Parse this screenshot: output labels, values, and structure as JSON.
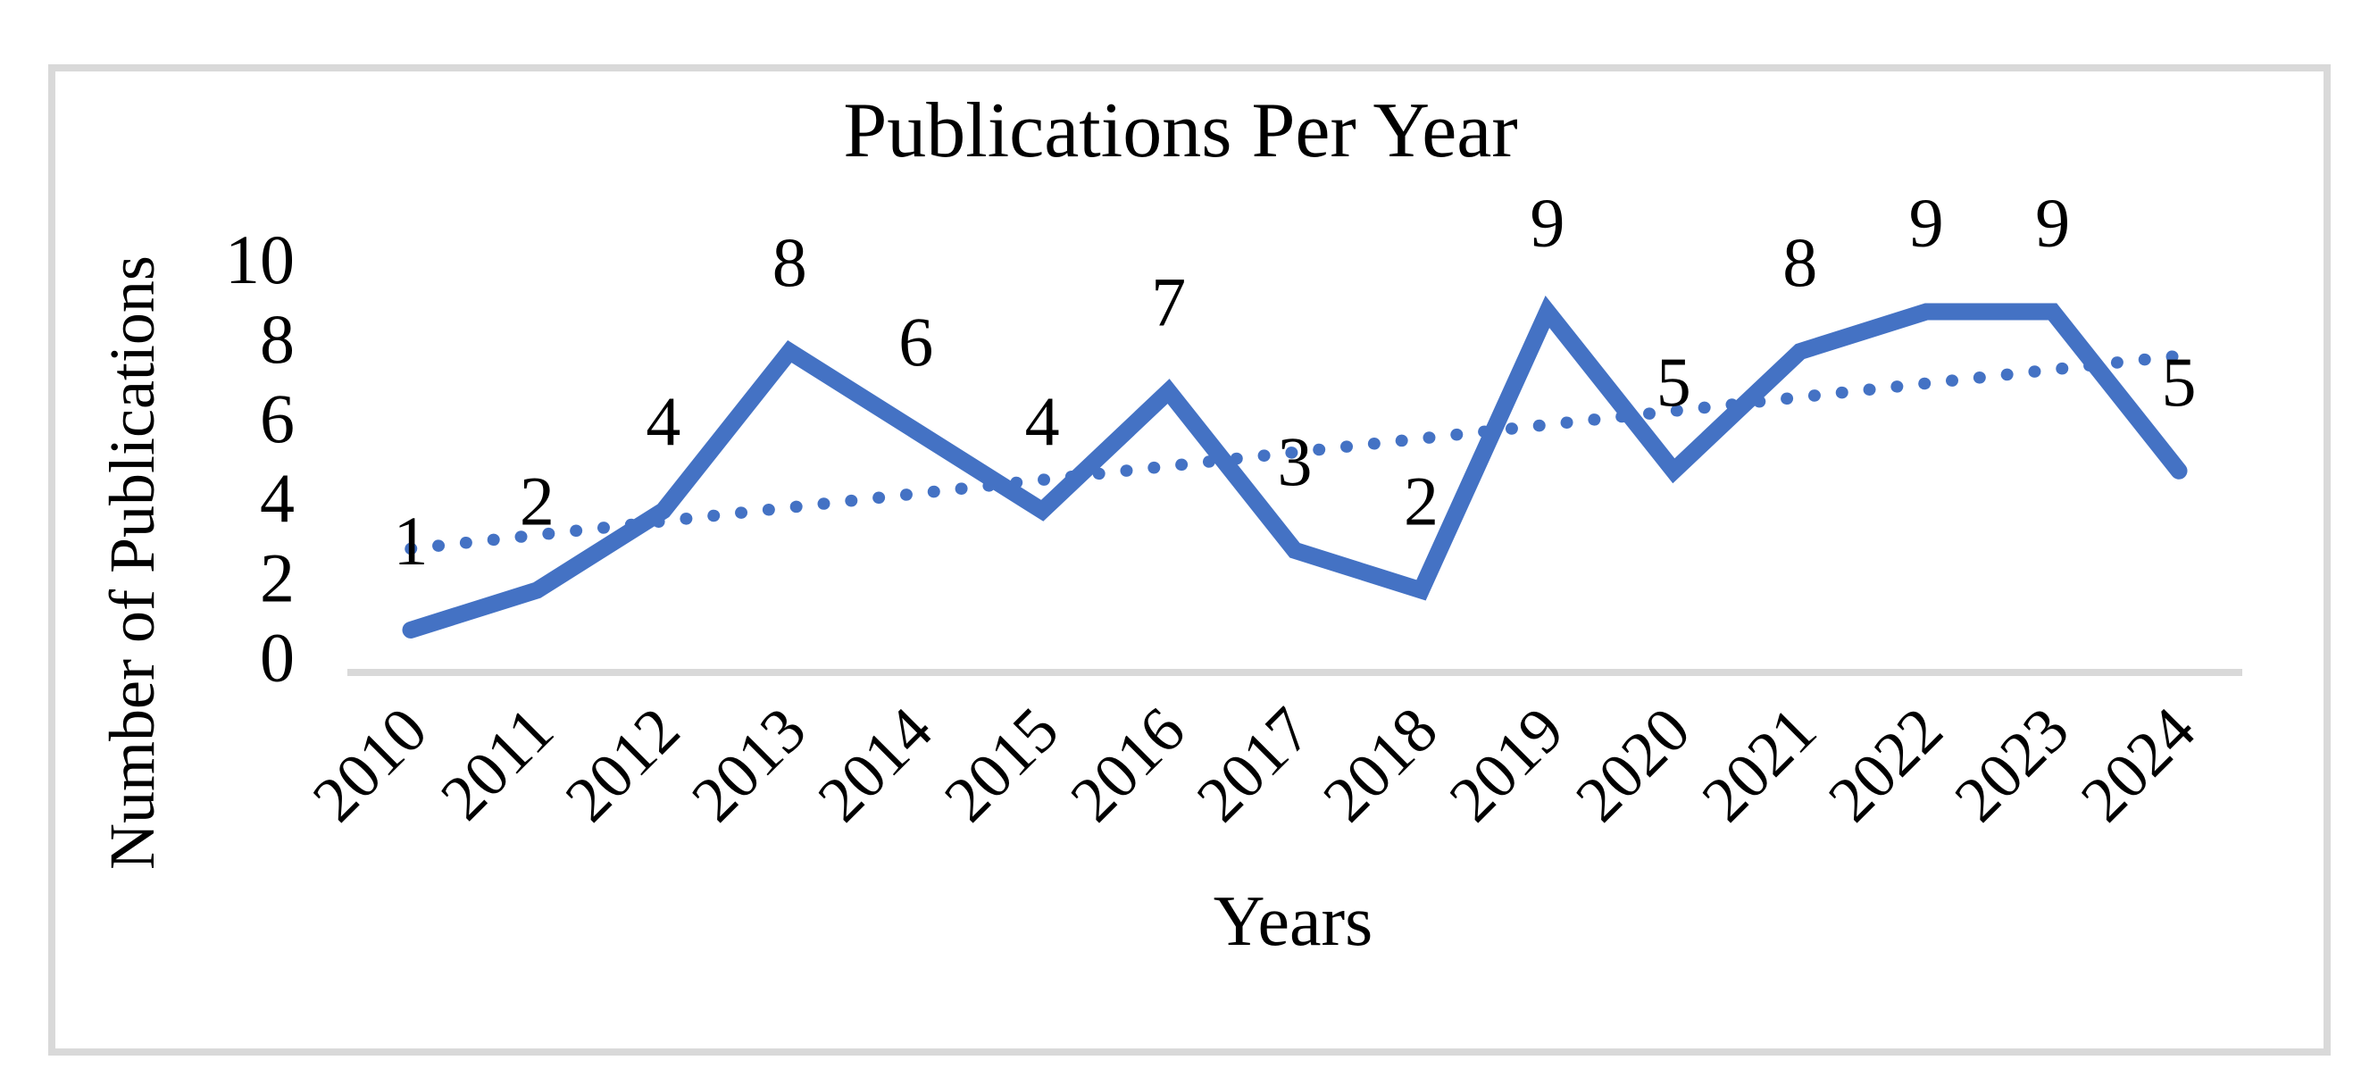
{
  "chart_data": {
    "type": "line",
    "title": "Publications Per Year",
    "xlabel": "Years",
    "ylabel": "Number of Publications",
    "categories": [
      "2010",
      "2011",
      "2012",
      "2013",
      "2014",
      "2015",
      "2016",
      "2017",
      "2018",
      "2019",
      "2020",
      "2021",
      "2022",
      "2023",
      "2024"
    ],
    "series": [
      {
        "name": "Publications per year",
        "values": [
          1,
          2,
          4,
          8,
          6,
          4,
          7,
          3,
          2,
          9,
          5,
          8,
          9,
          9,
          5
        ]
      }
    ],
    "data_labels": [
      1,
      2,
      4,
      8,
      6,
      4,
      7,
      3,
      2,
      9,
      5,
      8,
      9,
      9,
      5
    ],
    "trendline": {
      "type": "linear",
      "style": "dotted"
    },
    "yticks": [
      0,
      2,
      4,
      6,
      8,
      10
    ],
    "ylim": [
      0,
      10
    ],
    "grid": false,
    "legend": "none",
    "colors": {
      "series": "#4472C4",
      "trendline": "#4472C4",
      "axis_line": "#D9D9D9",
      "frame_border": "#D9D9D9",
      "text": "#000000",
      "background": "#FFFFFF"
    }
  }
}
